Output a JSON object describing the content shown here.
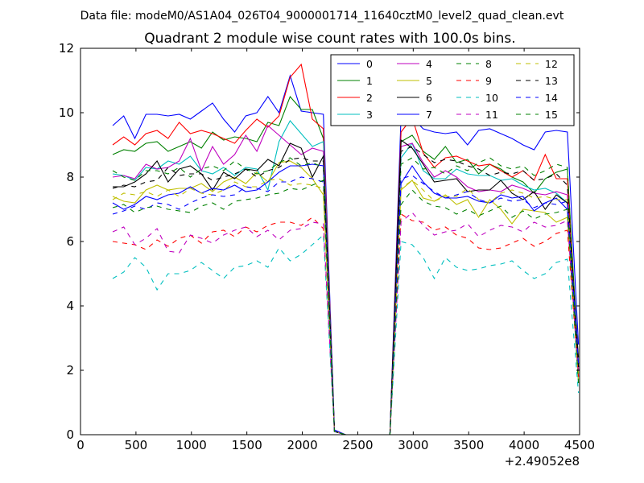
{
  "figure": {
    "suptitle": "Data file: modeM0/AS1A04_026T04_9000001714_11640cztM0_level2_quad_clean.evt"
  },
  "chart_data": {
    "type": "line",
    "title": "Quadrant 2 module wise count rates with 100.0s bins.",
    "xlabel": "",
    "ylabel": "",
    "x_offset_label": "+2.49052e8",
    "xlim": [
      0,
      4500
    ],
    "ylim": [
      0,
      12
    ],
    "xticks": [
      0,
      500,
      1000,
      1500,
      2000,
      2500,
      3000,
      3500,
      4000,
      4500
    ],
    "yticks": [
      0,
      2,
      4,
      6,
      8,
      10,
      12
    ],
    "grid": false,
    "legend_position": "top-right",
    "legend_ncol": 4,
    "x": [
      290,
      390,
      490,
      590,
      690,
      790,
      890,
      990,
      1090,
      1190,
      1290,
      1390,
      1490,
      1590,
      1690,
      1790,
      1890,
      1990,
      2090,
      2190,
      2290,
      2390,
      2490,
      2590,
      2690,
      2790,
      2890,
      2990,
      3090,
      3190,
      3290,
      3390,
      3490,
      3590,
      3690,
      3790,
      3890,
      3990,
      4090,
      4190,
      4290,
      4390,
      4490
    ],
    "series": [
      {
        "name": "0",
        "color": "#0000ff",
        "style": "solid",
        "values": [
          9.6,
          9.9,
          9.2,
          9.95,
          9.95,
          9.9,
          9.95,
          9.8,
          10.05,
          10.3,
          9.8,
          9.4,
          9.9,
          10.0,
          10.5,
          10.0,
          11.15,
          10.05,
          10.0,
          9.95,
          0.15,
          0.0,
          0.0,
          0.0,
          0.0,
          0.0,
          9.9,
          9.85,
          9.5,
          9.4,
          9.35,
          9.4,
          9.0,
          9.45,
          9.5,
          9.35,
          9.2,
          9.0,
          8.85,
          9.4,
          9.45,
          9.4,
          2.8
        ]
      },
      {
        "name": "1",
        "color": "#008000",
        "style": "solid",
        "values": [
          8.7,
          8.85,
          8.8,
          9.05,
          9.1,
          8.8,
          8.95,
          9.1,
          8.9,
          9.4,
          9.15,
          9.25,
          9.2,
          9.1,
          9.7,
          9.6,
          10.5,
          10.1,
          10.1,
          9.2,
          0.1,
          0.0,
          0.0,
          0.0,
          0.0,
          0.0,
          9.1,
          9.3,
          8.8,
          8.55,
          8.95,
          8.45,
          8.55,
          8.1,
          8.4,
          8.25,
          8.0,
          7.85,
          7.5,
          7.95,
          8.15,
          8.25,
          2.2
        ]
      },
      {
        "name": "2",
        "color": "#ff0000",
        "style": "solid",
        "values": [
          9.0,
          9.25,
          9.0,
          9.35,
          9.45,
          9.2,
          9.7,
          9.35,
          9.45,
          9.35,
          9.2,
          9.05,
          9.45,
          9.8,
          9.55,
          9.9,
          11.1,
          11.5,
          9.8,
          9.5,
          0.1,
          0.0,
          0.0,
          0.0,
          0.0,
          0.0,
          9.4,
          9.85,
          8.75,
          8.3,
          8.6,
          8.65,
          8.5,
          8.35,
          8.4,
          8.2,
          8.0,
          8.2,
          7.9,
          8.7,
          7.95,
          7.95,
          2.0
        ]
      },
      {
        "name": "3",
        "color": "#00bfbf",
        "style": "solid",
        "values": [
          8.1,
          8.05,
          7.9,
          8.3,
          8.25,
          8.5,
          8.4,
          8.65,
          8.2,
          8.1,
          8.3,
          8.05,
          8.3,
          8.25,
          7.6,
          9.1,
          9.75,
          9.35,
          8.95,
          9.1,
          0.1,
          0.0,
          0.0,
          0.0,
          0.0,
          0.0,
          8.6,
          9.05,
          8.2,
          7.95,
          7.95,
          8.25,
          8.1,
          8.05,
          8.05,
          7.9,
          7.95,
          7.75,
          7.6,
          7.65,
          7.5,
          7.2,
          1.6
        ]
      },
      {
        "name": "4",
        "color": "#bf00bf",
        "style": "solid",
        "values": [
          8.0,
          8.05,
          7.95,
          8.4,
          8.25,
          8.3,
          8.5,
          9.2,
          8.2,
          8.95,
          8.4,
          8.7,
          9.3,
          8.8,
          9.6,
          9.3,
          9.0,
          8.7,
          8.9,
          8.8,
          0.1,
          0.0,
          0.0,
          0.0,
          0.0,
          0.0,
          8.95,
          9.05,
          8.45,
          8.0,
          8.2,
          8.0,
          7.7,
          7.55,
          7.6,
          7.55,
          7.75,
          7.65,
          7.5,
          7.45,
          7.55,
          7.45,
          1.8
        ]
      },
      {
        "name": "5",
        "color": "#bfbf00",
        "style": "solid",
        "values": [
          7.4,
          7.25,
          7.2,
          7.6,
          7.75,
          7.6,
          7.65,
          7.65,
          7.8,
          7.55,
          7.85,
          8.0,
          7.8,
          8.15,
          7.85,
          8.45,
          8.5,
          8.3,
          7.95,
          7.45,
          0.1,
          0.0,
          0.0,
          0.0,
          0.0,
          0.0,
          7.6,
          7.9,
          7.35,
          7.25,
          7.45,
          7.15,
          7.3,
          6.75,
          7.3,
          7.0,
          6.55,
          7.0,
          6.95,
          6.9,
          6.6,
          6.75,
          1.7
        ]
      },
      {
        "name": "6",
        "color": "#000000",
        "style": "solid",
        "values": [
          7.7,
          7.7,
          7.85,
          8.1,
          8.5,
          7.85,
          8.25,
          8.35,
          8.1,
          7.6,
          8.15,
          7.95,
          8.25,
          8.2,
          8.55,
          8.35,
          9.05,
          8.9,
          8.0,
          8.65,
          0.1,
          0.0,
          0.0,
          0.0,
          0.0,
          0.0,
          9.15,
          8.9,
          8.4,
          7.85,
          7.9,
          7.95,
          7.55,
          7.6,
          7.6,
          7.9,
          7.5,
          7.3,
          7.55,
          7.0,
          7.45,
          7.2,
          2.4
        ]
      },
      {
        "name": "7",
        "color": "#0000ff",
        "style": "solid",
        "values": [
          7.2,
          7.0,
          7.15,
          7.4,
          7.3,
          7.45,
          7.5,
          7.7,
          7.5,
          7.65,
          7.6,
          7.75,
          7.55,
          7.6,
          7.85,
          8.15,
          8.35,
          8.35,
          8.4,
          8.35,
          0.1,
          0.0,
          0.0,
          0.0,
          0.0,
          0.0,
          7.8,
          8.35,
          7.85,
          7.5,
          7.35,
          7.35,
          7.4,
          7.25,
          7.2,
          7.45,
          7.35,
          7.4,
          6.95,
          7.2,
          7.35,
          7.0,
          2.1
        ]
      },
      {
        "name": "8",
        "color": "#008000",
        "style": "dashed",
        "values": [
          8.2,
          8.0,
          7.9,
          8.2,
          8.2,
          8.1,
          8.3,
          8.0,
          8.25,
          8.35,
          8.2,
          8.5,
          8.25,
          8.1,
          8.2,
          8.45,
          8.6,
          8.35,
          8.45,
          8.3,
          0.1,
          0.0,
          0.0,
          0.0,
          0.0,
          0.0,
          8.4,
          8.6,
          8.25,
          8.3,
          8.1,
          8.35,
          8.2,
          8.45,
          8.6,
          8.35,
          8.25,
          8.35,
          8.05,
          8.2,
          8.4,
          8.3,
          2.0
        ]
      },
      {
        "name": "9",
        "color": "#ff0000",
        "style": "dashed",
        "values": [
          6.0,
          5.95,
          5.9,
          5.75,
          6.05,
          5.85,
          6.1,
          6.2,
          5.95,
          6.3,
          6.35,
          6.15,
          6.45,
          6.3,
          6.5,
          6.6,
          6.6,
          6.5,
          6.75,
          6.4,
          0.1,
          0.0,
          0.0,
          0.0,
          0.0,
          0.0,
          6.85,
          6.65,
          6.6,
          6.35,
          6.45,
          6.2,
          6.1,
          5.8,
          5.75,
          5.8,
          5.95,
          6.1,
          5.85,
          6.0,
          6.25,
          6.35,
          1.8
        ]
      },
      {
        "name": "10",
        "color": "#00bfbf",
        "style": "dashed",
        "values": [
          4.85,
          5.05,
          5.5,
          5.2,
          4.5,
          5.0,
          5.0,
          5.1,
          5.35,
          5.1,
          4.85,
          5.2,
          5.25,
          5.4,
          5.2,
          5.8,
          5.4,
          5.6,
          5.9,
          6.2,
          0.1,
          0.0,
          0.0,
          0.0,
          0.0,
          0.0,
          6.0,
          5.9,
          5.5,
          4.85,
          5.5,
          5.2,
          5.1,
          5.15,
          5.25,
          5.3,
          5.4,
          5.1,
          4.85,
          5.0,
          5.35,
          5.45,
          1.3
        ]
      },
      {
        "name": "11",
        "color": "#bf00bf",
        "style": "dashed",
        "values": [
          6.3,
          6.45,
          5.9,
          6.1,
          6.4,
          5.7,
          5.65,
          6.2,
          6.1,
          5.95,
          6.2,
          6.35,
          6.45,
          6.15,
          6.35,
          6.05,
          6.35,
          6.4,
          6.6,
          6.55,
          0.1,
          0.0,
          0.0,
          0.0,
          0.0,
          0.0,
          6.6,
          6.9,
          6.5,
          6.2,
          6.3,
          6.35,
          6.55,
          6.15,
          6.35,
          6.5,
          6.45,
          6.3,
          6.6,
          6.45,
          6.5,
          6.65,
          1.9
        ]
      },
      {
        "name": "12",
        "color": "#bfbf00",
        "style": "dashed",
        "values": [
          7.3,
          7.5,
          7.45,
          7.55,
          7.4,
          7.6,
          7.4,
          7.65,
          7.5,
          7.45,
          7.6,
          7.85,
          7.7,
          7.7,
          7.9,
          7.95,
          7.75,
          7.8,
          7.75,
          7.65,
          0.1,
          0.0,
          0.0,
          0.0,
          0.0,
          0.0,
          7.65,
          7.9,
          7.6,
          7.25,
          7.4,
          7.4,
          7.65,
          7.3,
          7.2,
          7.5,
          7.6,
          7.5,
          7.35,
          7.4,
          7.3,
          7.3,
          1.9
        ]
      },
      {
        "name": "13",
        "color": "#000000",
        "style": "dashed",
        "values": [
          7.65,
          7.75,
          7.7,
          7.85,
          7.9,
          8.3,
          8.05,
          8.1,
          8.1,
          7.9,
          8.0,
          8.1,
          8.25,
          8.0,
          8.2,
          8.3,
          8.55,
          8.6,
          8.5,
          8.5,
          0.1,
          0.0,
          0.0,
          0.0,
          0.0,
          0.0,
          8.8,
          8.95,
          8.7,
          8.45,
          8.55,
          8.5,
          8.35,
          8.25,
          8.05,
          8.15,
          8.1,
          8.2,
          7.9,
          7.95,
          8.1,
          7.75,
          2.1
        ]
      },
      {
        "name": "14",
        "color": "#0000ff",
        "style": "dashed",
        "values": [
          6.85,
          6.95,
          7.1,
          7.0,
          7.2,
          7.15,
          7.0,
          7.2,
          7.35,
          7.45,
          7.4,
          7.45,
          7.7,
          7.65,
          7.55,
          7.85,
          7.85,
          8.0,
          7.95,
          7.85,
          0.1,
          0.0,
          0.0,
          0.0,
          0.0,
          0.0,
          7.95,
          8.05,
          7.8,
          7.55,
          7.35,
          7.45,
          7.55,
          7.3,
          7.2,
          7.35,
          7.25,
          7.3,
          7.05,
          7.2,
          7.15,
          7.25,
          2.2
        ]
      },
      {
        "name": "15",
        "color": "#008000",
        "style": "dashed",
        "values": [
          7.05,
          7.15,
          6.9,
          7.05,
          7.1,
          7.0,
          6.95,
          6.9,
          7.1,
          7.2,
          7.0,
          7.25,
          7.3,
          7.35,
          7.45,
          7.5,
          7.65,
          7.6,
          7.75,
          7.9,
          0.1,
          0.0,
          0.0,
          0.0,
          0.0,
          0.0,
          7.15,
          7.6,
          7.25,
          7.1,
          7.05,
          6.85,
          7.0,
          6.8,
          6.95,
          7.1,
          6.75,
          6.95,
          6.7,
          6.85,
          6.9,
          7.0,
          1.6
        ]
      }
    ]
  }
}
